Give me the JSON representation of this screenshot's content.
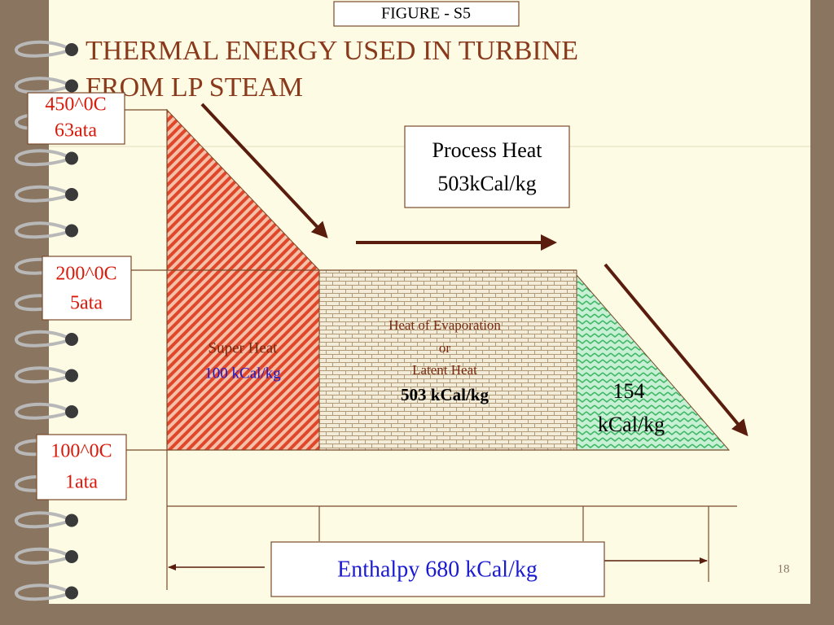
{
  "figure_label": "FIGURE - S5",
  "title": {
    "lines": [
      "THERMAL ENERGY USED IN TURBINE",
      "FROM LP STEAM"
    ]
  },
  "levels": [
    {
      "temperature": "450^0C",
      "pressure": "63ata"
    },
    {
      "temperature": "200^0C",
      "pressure": "5ata"
    },
    {
      "temperature": "100^0C",
      "pressure": "1ata"
    }
  ],
  "process_heat": {
    "label": "Process Heat",
    "value": "503kCal/kg"
  },
  "super_heat": {
    "label": "Super Heat",
    "value": "100 kCal/kg"
  },
  "evaporation": {
    "lines": [
      "Heat of Evaporation",
      "or",
      "Latent Heat"
    ],
    "value": "503 kCal/kg"
  },
  "sensible_heat": {
    "lines": [
      "154",
      "kCal/kg"
    ]
  },
  "enthalpy": "Enthalpy 680 kCal/kg",
  "page_number": "18"
}
